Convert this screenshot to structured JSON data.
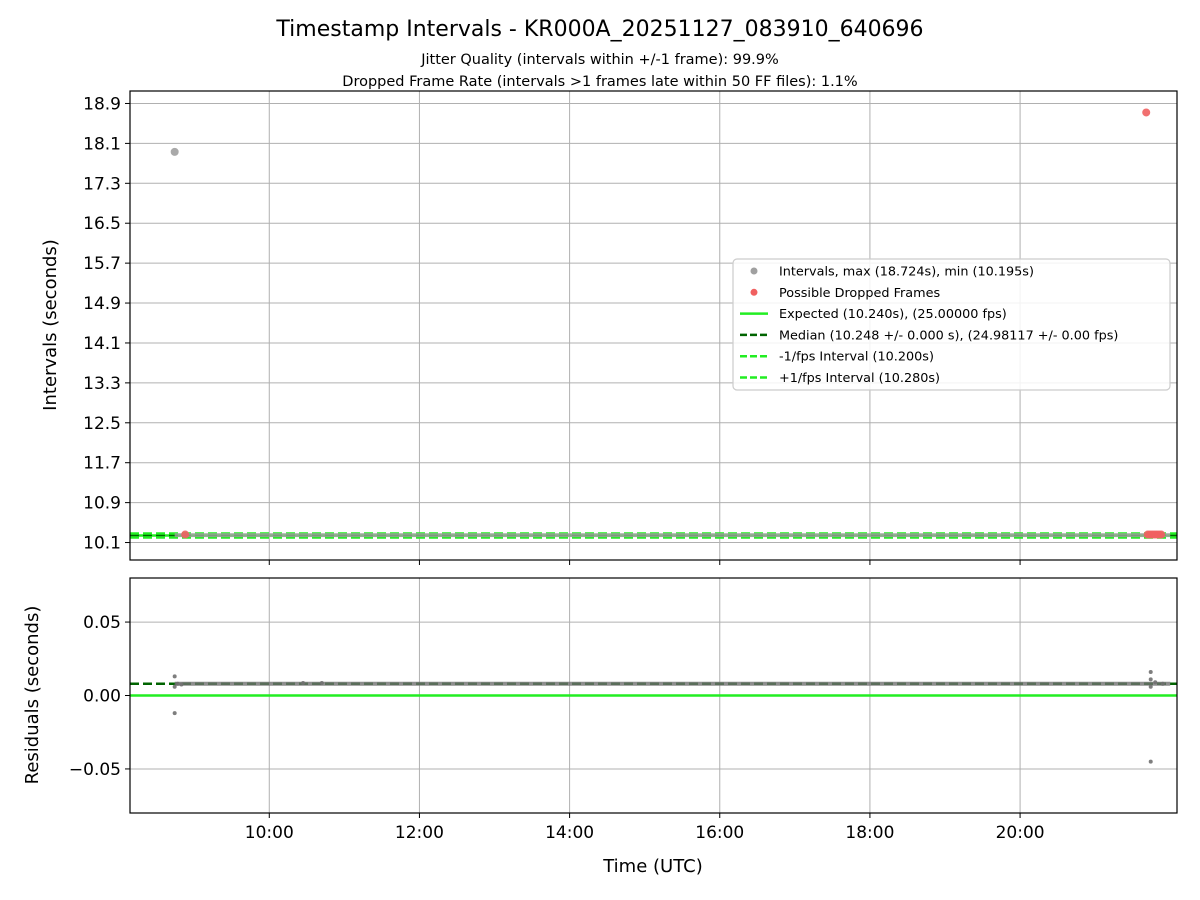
{
  "chart_data": [
    {
      "type": "scatter",
      "title": "Timestamp Intervals - KR000A_20251127_083910_640696",
      "subtitle_lines": [
        "Jitter Quality (intervals within +/-1 frame): 99.9%",
        "Dropped Frame Rate (intervals >1 frames late within 50 FF files): 1.1%"
      ],
      "ylabel": "Intervals (seconds)",
      "xlim_hours": [
        8.145,
        22.09
      ],
      "ylim": [
        9.75,
        19.15
      ],
      "yticks": [
        10.1,
        10.9,
        11.7,
        12.5,
        13.3,
        14.1,
        14.9,
        15.7,
        16.5,
        17.3,
        18.1,
        18.9
      ],
      "ytick_labels": [
        "10.1",
        "10.9",
        "11.7",
        "12.5",
        "13.3",
        "14.1",
        "14.9",
        "15.7",
        "16.5",
        "17.3",
        "18.1",
        "18.9"
      ],
      "series": [
        {
          "name": "Intervals",
          "kind": "scatter",
          "color": "#a0a0a0",
          "outlier_points": [
            {
              "x": 8.74,
              "y": 17.93
            }
          ],
          "band": {
            "x_start": 8.74,
            "x_end": 22.0,
            "y": 10.248
          }
        },
        {
          "name": "Possible Dropped Frames",
          "kind": "scatter",
          "color": "#f06060",
          "points": [
            {
              "x": 8.88,
              "y": 10.26
            },
            {
              "x": 21.68,
              "y": 18.72
            },
            {
              "x": 21.7,
              "y": 10.26
            },
            {
              "x": 21.73,
              "y": 10.26
            },
            {
              "x": 21.76,
              "y": 10.26
            },
            {
              "x": 21.79,
              "y": 10.26
            },
            {
              "x": 21.82,
              "y": 10.26
            },
            {
              "x": 21.85,
              "y": 10.26
            },
            {
              "x": 21.88,
              "y": 10.26
            }
          ]
        },
        {
          "name": "Expected",
          "kind": "hline",
          "y": 10.24,
          "style": "solid",
          "color": "#22ee22"
        },
        {
          "name": "Median",
          "kind": "hline",
          "y": 10.248,
          "style": "dashed",
          "color": "#006400"
        },
        {
          "name": "-1/fps Interval",
          "kind": "hline",
          "y": 10.2,
          "style": "dashed",
          "color": "#22ee22"
        },
        {
          "name": "+1/fps Interval",
          "kind": "hline",
          "y": 10.28,
          "style": "dashed",
          "color": "#22ee22"
        }
      ],
      "legend": {
        "position": "center-right",
        "entries": [
          {
            "label": "Intervals, max (18.724s), min (10.195s)",
            "kind": "marker",
            "color": "#a0a0a0"
          },
          {
            "label": "Possible Dropped Frames",
            "kind": "marker",
            "color": "#f06060"
          },
          {
            "label": "Expected (10.240s), (25.00000 fps)",
            "kind": "solid",
            "color": "#22ee22"
          },
          {
            "label": "Median (10.248 +/- 0.000 s), (24.98117 +/- 0.00 fps)",
            "kind": "dashed",
            "color": "#006400"
          },
          {
            "label": "-1/fps Interval (10.200s)",
            "kind": "dashed",
            "color": "#22ee22"
          },
          {
            "label": "+1/fps Interval (10.280s)",
            "kind": "dashed",
            "color": "#22ee22"
          }
        ]
      }
    },
    {
      "type": "scatter",
      "xlabel": "Time (UTC)",
      "ylabel": "Residuals (seconds)",
      "xlim_hours": [
        8.145,
        22.09
      ],
      "ylim": [
        -0.08,
        0.08
      ],
      "yticks": [
        -0.05,
        0.0,
        0.05
      ],
      "ytick_labels": [
        "−0.05",
        "0.00",
        "0.05"
      ],
      "xticks_hours": [
        10,
        12,
        14,
        16,
        18,
        20
      ],
      "xtick_labels": [
        "10:00",
        "12:00",
        "14:00",
        "16:00",
        "18:00",
        "20:00"
      ],
      "series": [
        {
          "name": "Residuals",
          "kind": "scatter",
          "color": "#707070",
          "points": [
            {
              "x": 8.74,
              "y": 0.013
            },
            {
              "x": 8.74,
              "y": 0.006
            },
            {
              "x": 8.74,
              "y": -0.012
            },
            {
              "x": 8.78,
              "y": 0.008
            },
            {
              "x": 8.83,
              "y": 0.0075
            },
            {
              "x": 10.45,
              "y": 0.0085
            },
            {
              "x": 10.7,
              "y": 0.0085
            },
            {
              "x": 21.74,
              "y": 0.016
            },
            {
              "x": 21.74,
              "y": 0.011
            },
            {
              "x": 21.74,
              "y": 0.006
            },
            {
              "x": 21.74,
              "y": -0.045
            },
            {
              "x": 21.8,
              "y": 0.009
            },
            {
              "x": 21.9,
              "y": 0.008
            }
          ],
          "band": {
            "x_start": 8.74,
            "x_end": 22.0,
            "y": 0.008
          }
        },
        {
          "name": "Zero",
          "kind": "hline",
          "y": 0.0,
          "style": "solid",
          "color": "#22ee22"
        },
        {
          "name": "Median residual",
          "kind": "hline",
          "y": 0.008,
          "style": "dashed",
          "color": "#006400"
        }
      ]
    }
  ]
}
